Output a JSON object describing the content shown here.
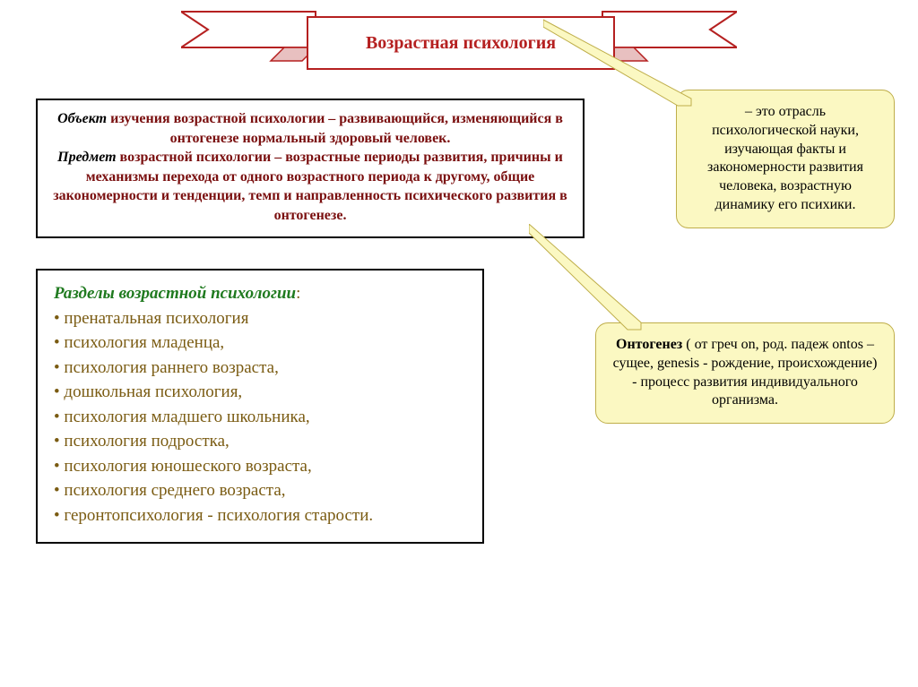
{
  "colors": {
    "title_red": "#b52020",
    "dark_red": "#7a0f0f",
    "green": "#1f7a1f",
    "olive": "#7a5b12",
    "callout_bg": "#fbf8c2",
    "callout_border": "#bfae4a",
    "black": "#000000"
  },
  "fonts": {
    "base": "Times New Roman",
    "title_size": 20,
    "body_size": 16,
    "sections_size": 19
  },
  "banner": {
    "title": "Возрастная психология"
  },
  "object_box": {
    "lines": [
      {
        "prefix": "Объект",
        "rest": " изучения возрастной психологии – развивающийся, изменяющийся в онтогенезе нормальный здоровый человек."
      },
      {
        "prefix": "Предмет",
        "rest": " возрастной психологии – возрастные периоды развития, причины и механизмы перехода от одного возрастного периода к другому, общие закономерности и тенденции, темп и направленность психического развития в онтогенезе."
      }
    ]
  },
  "sections": {
    "heading": "Разделы возрастной психологии",
    "items": [
      "пренатальная психология",
      "психология младенца,",
      "психология раннего возраста,",
      "дошкольная психология,",
      "психология младшего школьника,",
      "психология подростка,",
      "психология юношеского возраста,",
      "психология среднего возраста,",
      "геронтопсихология - психология старости."
    ]
  },
  "callout1": {
    "text": "– это отрасль психологической науки, изучающая факты и закономерности развития человека, возрастную динамику его психики."
  },
  "callout2": {
    "bold": "Онтогенез",
    "rest": " ( от  греч on, род. падеж ontos – сущее, genesis - рождение, происхождение) - процесс развития индивидуального организма."
  }
}
